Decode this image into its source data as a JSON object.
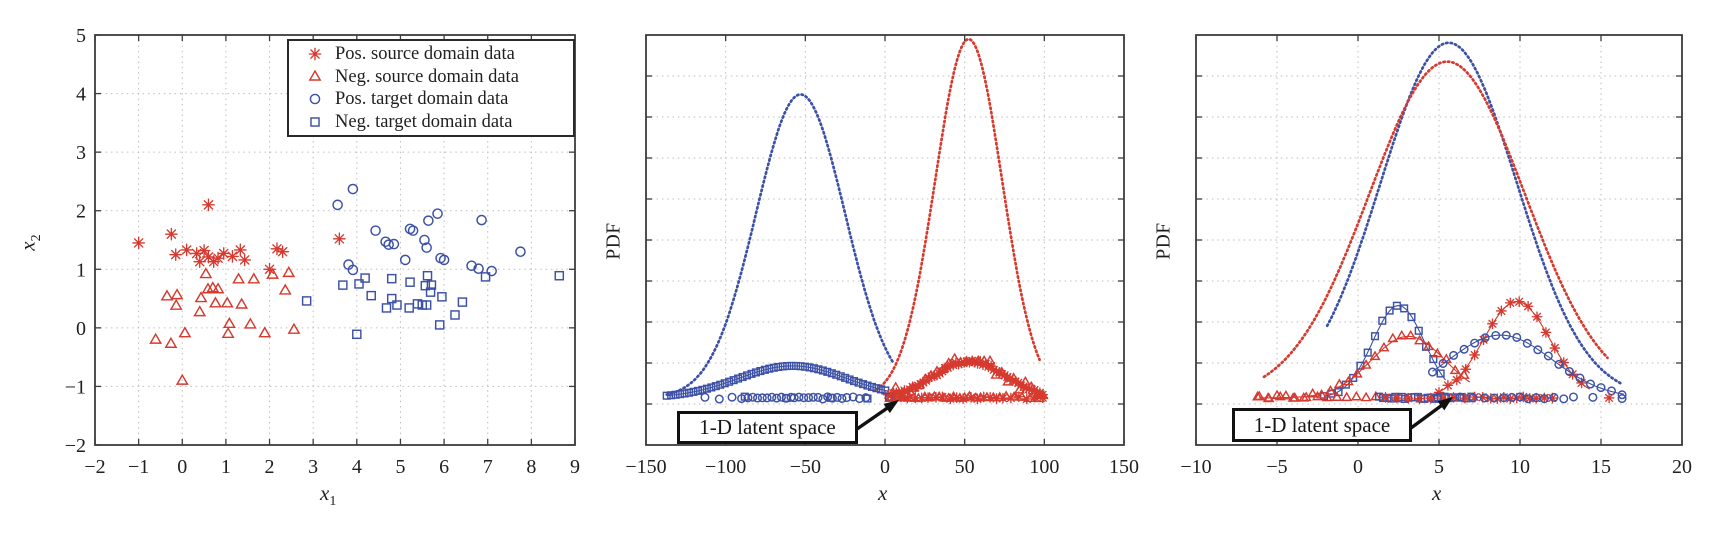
{
  "colors": {
    "red": "#d63a2f",
    "blue": "#3c51a6",
    "grid": "#bdbdbd",
    "axis": "#3c3c3c",
    "text": "#1f1f1f",
    "annotation_border": "#111111",
    "background": "#ffffff"
  },
  "chart_data": [
    {
      "type": "scatter",
      "xlabel": "x",
      "xlabel_sub": "1",
      "ylabel": "x",
      "ylabel_sub": "2",
      "xlim": [
        -2,
        9
      ],
      "ylim": [
        -2,
        5
      ],
      "xticks": [
        -2,
        -1,
        0,
        1,
        2,
        3,
        4,
        5,
        6,
        7,
        8,
        9
      ],
      "yticks": [
        -2,
        -1,
        0,
        1,
        2,
        3,
        4,
        5
      ],
      "grid": true,
      "legend": {
        "position": "top-right-inside",
        "items": [
          {
            "marker": "asterisk",
            "color": "red",
            "label": "Pos. source domain data"
          },
          {
            "marker": "triangle",
            "color": "red",
            "label": "Neg. source domain data"
          },
          {
            "marker": "circle",
            "color": "blue",
            "label": "Pos. target domain data"
          },
          {
            "marker": "square",
            "color": "blue",
            "label": "Neg. target domain data"
          }
        ]
      },
      "series": [
        {
          "name": "Pos. source domain data",
          "marker": "asterisk",
          "color": "red",
          "points": [
            [
              0.6,
              2.1
            ],
            [
              -0.25,
              1.6
            ],
            [
              -1.0,
              1.45
            ],
            [
              -0.15,
              1.25
            ],
            [
              0.1,
              1.33
            ],
            [
              0.33,
              1.27
            ],
            [
              0.4,
              1.13
            ],
            [
              0.6,
              1.21
            ],
            [
              0.72,
              1.13
            ],
            [
              0.82,
              1.19
            ],
            [
              0.95,
              1.27
            ],
            [
              1.15,
              1.22
            ],
            [
              1.33,
              1.33
            ],
            [
              1.43,
              1.16
            ],
            [
              2.0,
              1.0
            ],
            [
              2.17,
              1.35
            ],
            [
              2.3,
              1.3
            ],
            [
              3.6,
              1.52
            ],
            [
              0.5,
              1.32
            ]
          ]
        },
        {
          "name": "Neg. source domain data",
          "marker": "triangle",
          "color": "red",
          "points": [
            [
              0.54,
              0.91
            ],
            [
              1.29,
              0.82
            ],
            [
              1.64,
              0.82
            ],
            [
              2.07,
              0.9
            ],
            [
              2.44,
              0.93
            ],
            [
              0.59,
              0.65
            ],
            [
              0.7,
              0.67
            ],
            [
              0.82,
              0.65
            ],
            [
              -0.35,
              0.53
            ],
            [
              -0.12,
              0.55
            ],
            [
              0.43,
              0.5
            ],
            [
              0.76,
              0.41
            ],
            [
              1.03,
              0.41
            ],
            [
              1.36,
              0.39
            ],
            [
              -0.14,
              0.37
            ],
            [
              2.36,
              0.63
            ],
            [
              0.4,
              0.26
            ],
            [
              1.08,
              0.06
            ],
            [
              1.56,
              0.05
            ],
            [
              0.06,
              -0.1
            ],
            [
              1.05,
              -0.11
            ],
            [
              1.89,
              -0.1
            ],
            [
              2.56,
              -0.04
            ],
            [
              -0.61,
              -0.21
            ],
            [
              -0.26,
              -0.28
            ],
            [
              0.0,
              -0.91
            ]
          ]
        },
        {
          "name": "Pos. target domain data",
          "marker": "circle",
          "color": "blue",
          "points": [
            [
              3.91,
              2.37
            ],
            [
              3.56,
              2.1
            ],
            [
              4.43,
              1.66
            ],
            [
              5.85,
              1.95
            ],
            [
              5.64,
              1.83
            ],
            [
              5.22,
              1.69
            ],
            [
              5.29,
              1.66
            ],
            [
              4.66,
              1.47
            ],
            [
              4.73,
              1.42
            ],
            [
              4.85,
              1.43
            ],
            [
              5.55,
              1.5
            ],
            [
              5.6,
              1.37
            ],
            [
              6.86,
              1.84
            ],
            [
              7.75,
              1.3
            ],
            [
              5.11,
              1.16
            ],
            [
              5.92,
              1.19
            ],
            [
              6.0,
              1.16
            ],
            [
              3.81,
              1.08
            ],
            [
              3.91,
              0.99
            ],
            [
              6.63,
              1.06
            ],
            [
              6.79,
              1.01
            ],
            [
              7.09,
              0.97
            ]
          ]
        },
        {
          "name": "Neg. target domain data",
          "marker": "square",
          "color": "blue",
          "points": [
            [
              4.19,
              0.85
            ],
            [
              4.8,
              0.84
            ],
            [
              5.62,
              0.89
            ],
            [
              3.68,
              0.73
            ],
            [
              4.05,
              0.75
            ],
            [
              5.22,
              0.78
            ],
            [
              5.57,
              0.72
            ],
            [
              5.71,
              0.73
            ],
            [
              5.69,
              0.61
            ],
            [
              6.95,
              0.87
            ],
            [
              8.64,
              0.89
            ],
            [
              4.33,
              0.55
            ],
            [
              5.95,
              0.53
            ],
            [
              4.8,
              0.5
            ],
            [
              5.39,
              0.41
            ],
            [
              5.5,
              0.39
            ],
            [
              5.6,
              0.39
            ],
            [
              6.42,
              0.44
            ],
            [
              4.68,
              0.34
            ],
            [
              4.92,
              0.39
            ],
            [
              5.2,
              0.34
            ],
            [
              6.25,
              0.22
            ],
            [
              5.9,
              0.05
            ],
            [
              4.0,
              -0.11
            ],
            [
              2.85,
              0.46
            ]
          ]
        }
      ]
    },
    {
      "type": "line",
      "xlabel": "x",
      "ylabel": "PDF",
      "xlim": [
        -150,
        150
      ],
      "xticks": [
        -150,
        -100,
        -50,
        0,
        50,
        100,
        150
      ],
      "y_gridlines": 9,
      "baseline_frac": 0.115,
      "grid": true,
      "curves": [
        {
          "name": "target-domain-pdf",
          "color": "blue",
          "style": "dotted",
          "mean": -53,
          "sigma": 28,
          "amp": 0.74,
          "range": [
            -137,
            5
          ]
        },
        {
          "name": "source-domain-pdf",
          "color": "red",
          "style": "dotted",
          "mean": 52.5,
          "sigma": 21,
          "amp": 0.875,
          "range": [
            -5,
            97
          ]
        },
        {
          "name": "neg-target-latent-density",
          "color": "blue",
          "style": "markers",
          "marker": "square",
          "mean": -58,
          "sigma": 34,
          "amp": 0.078,
          "range": [
            -137,
            2
          ],
          "step": 2.8,
          "jitter": 0
        },
        {
          "name": "neg-source-latent-density-stars",
          "color": "red",
          "style": "markers",
          "marker": "asterisk",
          "mean": 53,
          "sigma": 22,
          "amp": 0.09,
          "range": [
            2,
            100
          ],
          "step": 1.7,
          "jitter": 1.5
        },
        {
          "name": "neg-source-latent-density-triangles",
          "color": "red",
          "style": "markers",
          "marker": "triangle",
          "mean": 53,
          "sigma": 22,
          "amp": 0.09,
          "range": [
            3,
            100
          ],
          "step": 3.7,
          "jitter": 7
        }
      ],
      "rug": [
        {
          "name": "pos-target-latent-samples",
          "marker": "circle",
          "color": "blue",
          "xs": [
            -113,
            -104,
            -96,
            -90,
            -86,
            -83,
            -80,
            -77,
            -74,
            -71,
            -68,
            -65,
            -62,
            -59,
            -57,
            -54,
            -51,
            -48,
            -45,
            -42,
            -39,
            -36,
            -33,
            -30,
            -27,
            -24,
            -20,
            -16,
            -12
          ]
        },
        {
          "name": "neg-target-latent-samples",
          "marker": "square",
          "color": "blue",
          "xs": [
            -88,
            -62,
            -34,
            -11,
            2.5
          ]
        },
        {
          "name": "neg-source-latent-samples",
          "marker": "triangle",
          "color": "red",
          "xs": [
            4,
            8,
            12,
            15,
            18,
            21,
            25,
            28,
            31,
            34,
            37,
            40,
            43,
            47,
            50,
            53,
            57,
            60,
            64,
            68,
            72,
            76,
            81,
            86,
            91,
            97
          ]
        },
        {
          "name": "pos-source-latent-samples",
          "marker": "asterisk",
          "color": "red",
          "xs": [
            6,
            10,
            14,
            19,
            23,
            27,
            32,
            36,
            41,
            45,
            49,
            54,
            58,
            62,
            66,
            70,
            74,
            79,
            84,
            89,
            94,
            99
          ]
        }
      ],
      "annotation": {
        "text": "1-D latent space",
        "arrow_to_x": 9
      }
    },
    {
      "type": "line",
      "xlabel": "x",
      "ylabel": "PDF",
      "xlim": [
        -10,
        20
      ],
      "xticks": [
        -10,
        -5,
        0,
        5,
        10,
        15,
        20
      ],
      "y_gridlines": 9,
      "baseline_frac": 0.115,
      "grid": true,
      "curves": [
        {
          "name": "target-domain-pdf",
          "color": "blue",
          "style": "dotted",
          "mean": 5.6,
          "sigma": 4.2,
          "amp": 0.866,
          "range": [
            -1.9,
            16.3
          ]
        },
        {
          "name": "source-domain-pdf",
          "color": "red",
          "style": "dotted",
          "mean": 5.5,
          "sigma": 4.8,
          "amp": 0.82,
          "range": [
            -5.8,
            15.4
          ]
        },
        {
          "name": "neg-target-latent-density",
          "color": "blue",
          "style": "markers",
          "marker": "square",
          "mean": 2.5,
          "sigma": 1.6,
          "amp": 0.225,
          "range": [
            -2.1,
            5.4
          ],
          "step": 0.45,
          "jitter": 1.5
        },
        {
          "name": "neg-source-latent-density",
          "color": "red",
          "style": "markers",
          "marker": "triangle",
          "mean": 3.1,
          "sigma": 2.3,
          "amp": 0.15,
          "range": [
            -6.1,
            6.9
          ],
          "step": 0.55,
          "jitter": 2.5
        },
        {
          "name": "pos-source-latent-density",
          "color": "red",
          "style": "markers",
          "marker": "asterisk",
          "mean": 9.8,
          "sigma": 2.05,
          "amp": 0.235,
          "range": [
            5.0,
            14.3
          ],
          "step": 0.55,
          "jitter": 1.5
        },
        {
          "name": "pos-target-latent-density",
          "color": "blue",
          "style": "markers",
          "marker": "circle",
          "mean": 8.8,
          "sigma": 3.2,
          "amp": 0.153,
          "range": [
            4.6,
            16.4
          ],
          "step": 0.65,
          "jitter": 1
        }
      ],
      "rug": [
        {
          "name": "neg-source-latent-samples",
          "marker": "triangle",
          "color": "red",
          "xs": [
            -6.2,
            -5.5,
            -4.8,
            -4.0,
            -3.2,
            -2.5,
            -1.9,
            -1.3,
            -0.7,
            -0.1,
            0.5,
            1.1
          ]
        },
        {
          "name": "neg-target-latent-samples",
          "marker": "square",
          "color": "blue",
          "xs": [
            1.3,
            1.55,
            1.8,
            2.05,
            2.3,
            2.5,
            2.7,
            2.9,
            3.1,
            3.3,
            3.5,
            3.7,
            3.9,
            4.1,
            4.3,
            4.5,
            4.7,
            4.9,
            5.1,
            5.35,
            5.6,
            5.85,
            6.1,
            6.4,
            6.7,
            7.0
          ]
        },
        {
          "name": "pos-source-latent-samples",
          "marker": "asterisk",
          "color": "red",
          "xs": [
            1.7,
            2.4,
            3.1,
            3.8,
            4.5,
            5.2,
            5.9,
            6.6,
            7.2,
            7.7,
            8.2,
            8.6,
            9.0,
            9.4,
            9.8,
            10.2,
            10.6,
            11.0,
            11.5,
            12.0,
            15.5
          ]
        },
        {
          "name": "pos-target-latent-samples",
          "marker": "circle",
          "color": "blue",
          "xs": [
            4.9,
            6.3,
            7.1,
            7.8,
            8.4,
            9.0,
            9.5,
            10.0,
            10.5,
            11.0,
            11.5,
            12.1,
            12.7,
            13.3,
            14.5,
            16.3
          ]
        }
      ],
      "annotation": {
        "text": "1-D latent space",
        "arrow_to_x": 6
      }
    }
  ]
}
